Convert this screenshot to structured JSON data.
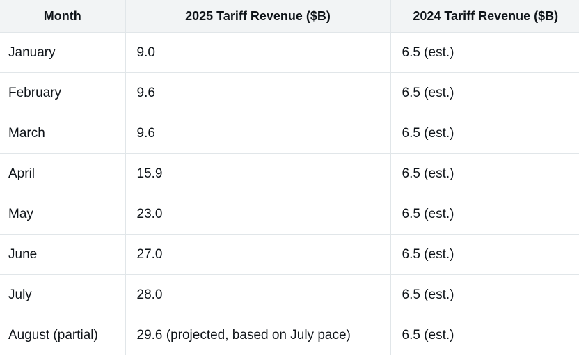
{
  "table": {
    "headers": [
      "Month",
      "2025 Tariff Revenue ($B)",
      "2024 Tariff Revenue ($B)"
    ],
    "rows": [
      [
        "January",
        "9.0",
        "6.5 (est.)"
      ],
      [
        "February",
        "9.6",
        "6.5 (est.)"
      ],
      [
        "March",
        "9.6",
        "6.5 (est.)"
      ],
      [
        "April",
        "15.9",
        "6.5 (est.)"
      ],
      [
        "May",
        "23.0",
        "6.5 (est.)"
      ],
      [
        "June",
        "27.0",
        "6.5 (est.)"
      ],
      [
        "July",
        "28.0",
        "6.5 (est.)"
      ],
      [
        "August (partial)",
        "29.6 (projected, based on July pace)",
        "6.5 (est.)"
      ]
    ]
  },
  "colors": {
    "header_background": "#f2f4f5",
    "border": "#e1e6e9",
    "text": "#0f1419"
  }
}
